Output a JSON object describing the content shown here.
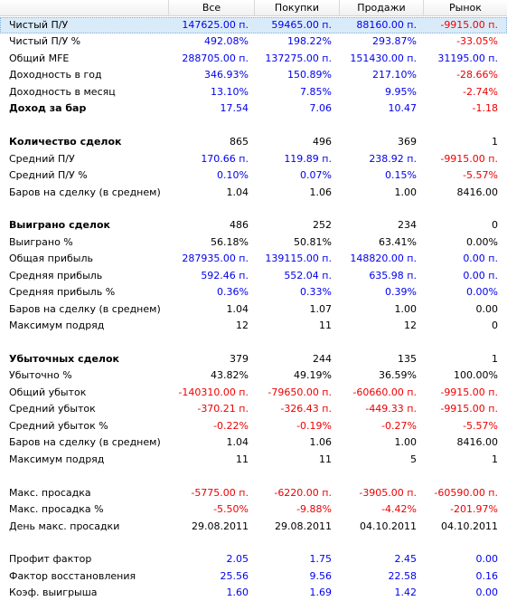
{
  "columns": [
    "Все",
    "Покупки",
    "Продажи",
    "Рынок"
  ],
  "colors": {
    "positive": "#0000ee",
    "negative": "#ee0000",
    "neutral": "#000000",
    "selection": "#d9ebf9"
  },
  "rows": [
    {
      "label": "Чистый П/У",
      "bold": false,
      "values": [
        "147625.00 п.",
        "59465.00 п.",
        "88160.00 п.",
        "-9915.00 п."
      ],
      "colors": [
        "blue",
        "blue",
        "blue",
        "red"
      ],
      "selected": true
    },
    {
      "label": "Чистый П/У %",
      "bold": false,
      "values": [
        "492.08%",
        "198.22%",
        "293.87%",
        "-33.05%"
      ],
      "colors": [
        "blue",
        "blue",
        "blue",
        "red"
      ]
    },
    {
      "label": "Общий MFE",
      "bold": false,
      "values": [
        "288705.00 п.",
        "137275.00 п.",
        "151430.00 п.",
        "31195.00 п."
      ],
      "colors": [
        "blue",
        "blue",
        "blue",
        "blue"
      ]
    },
    {
      "label": "Доходность в год",
      "bold": false,
      "values": [
        "346.93%",
        "150.89%",
        "217.10%",
        "-28.66%"
      ],
      "colors": [
        "blue",
        "blue",
        "blue",
        "red"
      ]
    },
    {
      "label": "Доходность в месяц",
      "bold": false,
      "values": [
        "13.10%",
        "7.85%",
        "9.95%",
        "-2.74%"
      ],
      "colors": [
        "blue",
        "blue",
        "blue",
        "red"
      ]
    },
    {
      "label": "Доход за бар",
      "bold": true,
      "values": [
        "17.54",
        "7.06",
        "10.47",
        "-1.18"
      ],
      "colors": [
        "blue",
        "blue",
        "blue",
        "red"
      ]
    },
    {
      "spacer": true
    },
    {
      "label": "Количество сделок",
      "bold": true,
      "values": [
        "865",
        "496",
        "369",
        "1"
      ],
      "colors": [
        "black",
        "black",
        "black",
        "black"
      ]
    },
    {
      "label": "Средний П/У",
      "bold": false,
      "values": [
        "170.66 п.",
        "119.89 п.",
        "238.92 п.",
        "-9915.00 п."
      ],
      "colors": [
        "blue",
        "blue",
        "blue",
        "red"
      ]
    },
    {
      "label": "Средний П/У %",
      "bold": false,
      "values": [
        "0.10%",
        "0.07%",
        "0.15%",
        "-5.57%"
      ],
      "colors": [
        "blue",
        "blue",
        "blue",
        "red"
      ]
    },
    {
      "label": "Баров на сделку (в среднем)",
      "bold": false,
      "values": [
        "1.04",
        "1.06",
        "1.00",
        "8416.00"
      ],
      "colors": [
        "black",
        "black",
        "black",
        "black"
      ]
    },
    {
      "spacer": true
    },
    {
      "label": "Выиграно сделок",
      "bold": true,
      "values": [
        "486",
        "252",
        "234",
        "0"
      ],
      "colors": [
        "black",
        "black",
        "black",
        "black"
      ]
    },
    {
      "label": "Выиграно %",
      "bold": false,
      "values": [
        "56.18%",
        "50.81%",
        "63.41%",
        "0.00%"
      ],
      "colors": [
        "black",
        "black",
        "black",
        "black"
      ]
    },
    {
      "label": "Общая прибыль",
      "bold": false,
      "values": [
        "287935.00 п.",
        "139115.00 п.",
        "148820.00 п.",
        "0.00 п."
      ],
      "colors": [
        "blue",
        "blue",
        "blue",
        "blue"
      ]
    },
    {
      "label": "Средняя прибыль",
      "bold": false,
      "values": [
        "592.46 п.",
        "552.04 п.",
        "635.98 п.",
        "0.00 п."
      ],
      "colors": [
        "blue",
        "blue",
        "blue",
        "blue"
      ]
    },
    {
      "label": "Средняя прибыль %",
      "bold": false,
      "values": [
        "0.36%",
        "0.33%",
        "0.39%",
        "0.00%"
      ],
      "colors": [
        "blue",
        "blue",
        "blue",
        "blue"
      ]
    },
    {
      "label": "Баров на сделку (в среднем)",
      "bold": false,
      "values": [
        "1.04",
        "1.07",
        "1.00",
        "0.00"
      ],
      "colors": [
        "black",
        "black",
        "black",
        "black"
      ]
    },
    {
      "label": "Максимум подряд",
      "bold": false,
      "values": [
        "12",
        "11",
        "12",
        "0"
      ],
      "colors": [
        "black",
        "black",
        "black",
        "black"
      ]
    },
    {
      "spacer": true
    },
    {
      "label": "Убыточных сделок",
      "bold": true,
      "values": [
        "379",
        "244",
        "135",
        "1"
      ],
      "colors": [
        "black",
        "black",
        "black",
        "black"
      ]
    },
    {
      "label": "Убыточно %",
      "bold": false,
      "values": [
        "43.82%",
        "49.19%",
        "36.59%",
        "100.00%"
      ],
      "colors": [
        "black",
        "black",
        "black",
        "black"
      ]
    },
    {
      "label": "Общий убыток",
      "bold": false,
      "values": [
        "-140310.00 п.",
        "-79650.00 п.",
        "-60660.00 п.",
        "-9915.00 п."
      ],
      "colors": [
        "red",
        "red",
        "red",
        "red"
      ]
    },
    {
      "label": "Средний убыток",
      "bold": false,
      "values": [
        "-370.21 п.",
        "-326.43 п.",
        "-449.33 п.",
        "-9915.00 п."
      ],
      "colors": [
        "red",
        "red",
        "red",
        "red"
      ]
    },
    {
      "label": "Средний убыток %",
      "bold": false,
      "values": [
        "-0.22%",
        "-0.19%",
        "-0.27%",
        "-5.57%"
      ],
      "colors": [
        "red",
        "red",
        "red",
        "red"
      ]
    },
    {
      "label": "Баров на сделку (в среднем)",
      "bold": false,
      "values": [
        "1.04",
        "1.06",
        "1.00",
        "8416.00"
      ],
      "colors": [
        "black",
        "black",
        "black",
        "black"
      ]
    },
    {
      "label": "Максимум подряд",
      "bold": false,
      "values": [
        "11",
        "11",
        "5",
        "1"
      ],
      "colors": [
        "black",
        "black",
        "black",
        "black"
      ]
    },
    {
      "spacer": true
    },
    {
      "label": "Макс. просадка",
      "bold": false,
      "values": [
        "-5775.00 п.",
        "-6220.00 п.",
        "-3905.00 п.",
        "-60590.00 п."
      ],
      "colors": [
        "red",
        "red",
        "red",
        "red"
      ]
    },
    {
      "label": "Макс. просадка %",
      "bold": false,
      "values": [
        "-5.50%",
        "-9.88%",
        "-4.42%",
        "-201.97%"
      ],
      "colors": [
        "red",
        "red",
        "red",
        "red"
      ]
    },
    {
      "label": "День макс. просадки",
      "bold": false,
      "values": [
        "29.08.2011",
        "29.08.2011",
        "04.10.2011",
        "04.10.2011"
      ],
      "colors": [
        "black",
        "black",
        "black",
        "black"
      ]
    },
    {
      "spacer": true
    },
    {
      "label": "Профит фактор",
      "bold": false,
      "values": [
        "2.05",
        "1.75",
        "2.45",
        "0.00"
      ],
      "colors": [
        "blue",
        "blue",
        "blue",
        "blue"
      ]
    },
    {
      "label": "Фактор восстановления",
      "bold": false,
      "values": [
        "25.56",
        "9.56",
        "22.58",
        "0.16"
      ],
      "colors": [
        "blue",
        "blue",
        "blue",
        "blue"
      ]
    },
    {
      "label": "Коэф. выигрыша",
      "bold": false,
      "values": [
        "1.60",
        "1.69",
        "1.42",
        "0.00"
      ],
      "colors": [
        "blue",
        "blue",
        "blue",
        "blue"
      ]
    }
  ]
}
